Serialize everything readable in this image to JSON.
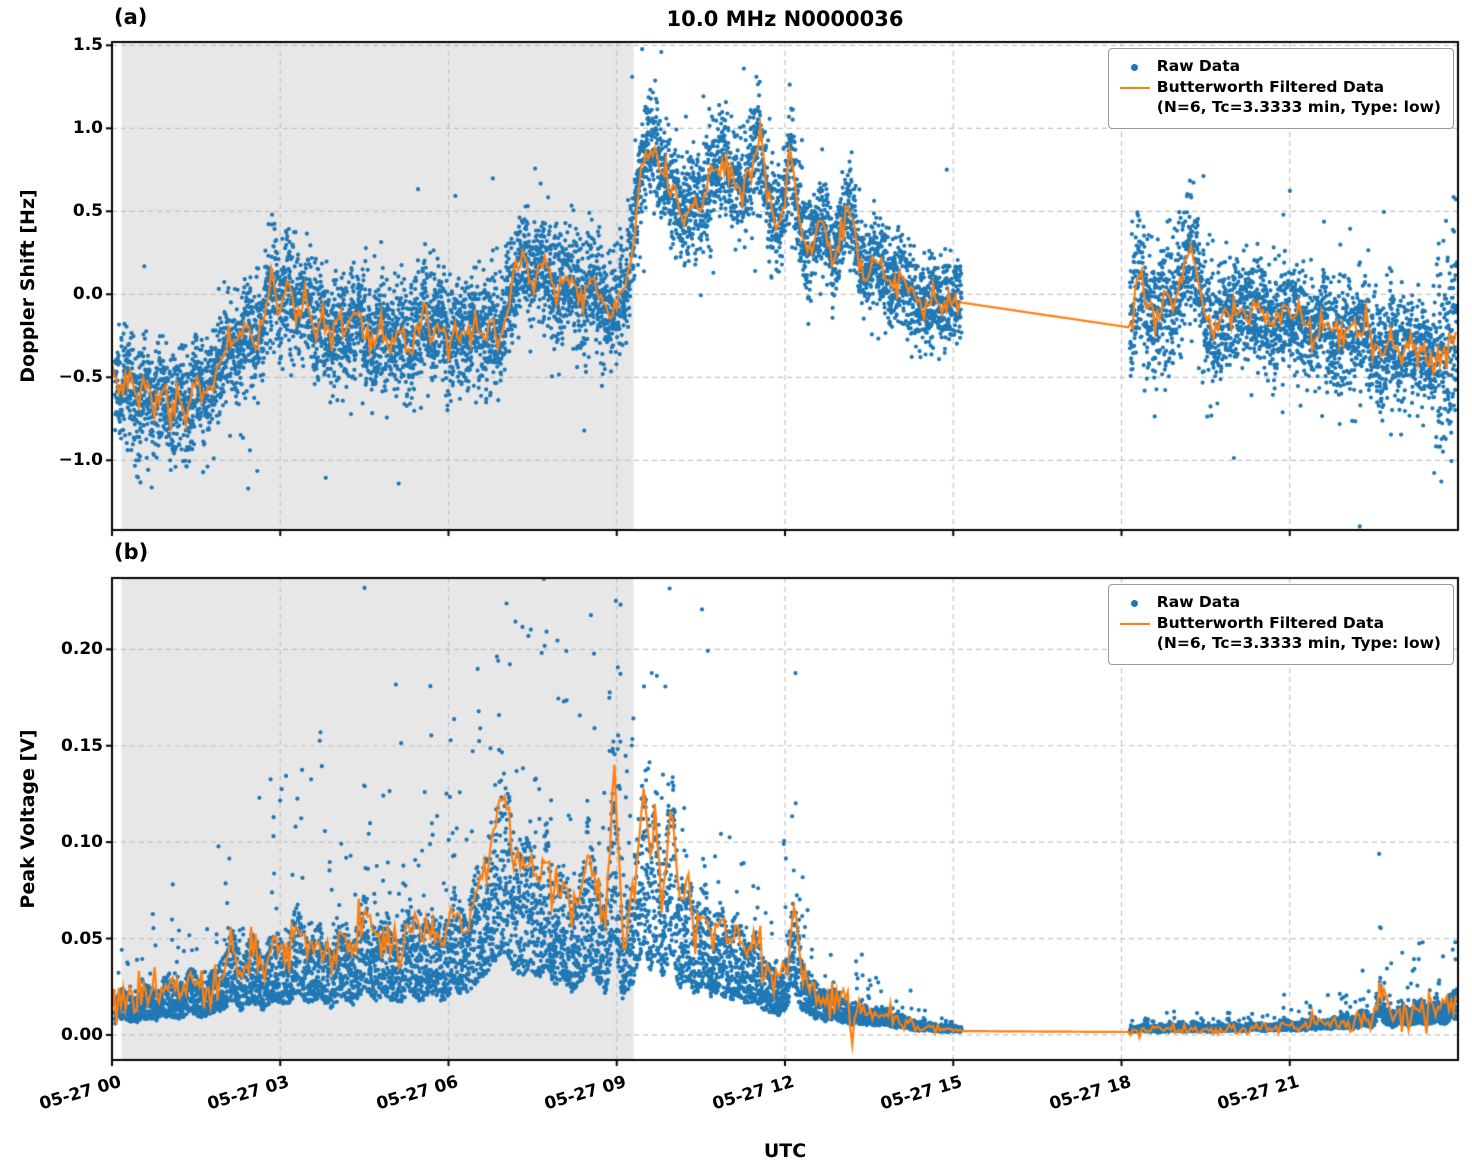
{
  "title": "10.0 MHz N0000036",
  "xlabel": "UTC",
  "legend": {
    "raw": "Raw Data",
    "filtered_line1": "Butterworth Filtered Data",
    "filtered_line2": "(N=6, Tc=3.3333 min, Type: low)"
  },
  "colors": {
    "raw": "#1f77b4",
    "filtered": "#ff7f0e",
    "shade": "#e7e7e7",
    "grid": "#c3c3c3",
    "frame": "#000000"
  },
  "xticks": [
    {
      "hour": 0,
      "label": "05-27 00"
    },
    {
      "hour": 3,
      "label": "05-27 03"
    },
    {
      "hour": 6,
      "label": "05-27 06"
    },
    {
      "hour": 9,
      "label": "05-27 09"
    },
    {
      "hour": 12,
      "label": "05-27 12"
    },
    {
      "hour": 15,
      "label": "05-27 15"
    },
    {
      "hour": 18,
      "label": "05-27 18"
    },
    {
      "hour": 21,
      "label": "05-27 21"
    }
  ],
  "chart_data": [
    {
      "type": "scatter",
      "panel_label": "(a)",
      "ylabel": "Doppler Shift [Hz]",
      "xlim_hours": [
        0,
        24
      ],
      "ylim": [
        -1.42,
        1.52
      ],
      "yticks": [
        {
          "value": 1.5,
          "label": "1.5"
        },
        {
          "value": 1.0,
          "label": "1.0"
        },
        {
          "value": 0.5,
          "label": "0.5"
        },
        {
          "value": 0.0,
          "label": "0.0"
        },
        {
          "value": -0.5,
          "label": "−0.5"
        },
        {
          "value": -1.0,
          "label": "−1.0"
        }
      ],
      "shaded_region_hours": [
        0.17,
        9.3
      ],
      "data_gap_hours": [
        15.15,
        18.15
      ],
      "line_wiggle": 0.045,
      "filtered_line_hour_value": [
        [
          0.0,
          -0.45
        ],
        [
          0.15,
          -0.6
        ],
        [
          0.3,
          -0.5
        ],
        [
          0.45,
          -0.68
        ],
        [
          0.6,
          -0.55
        ],
        [
          0.75,
          -0.72
        ],
        [
          0.9,
          -0.55
        ],
        [
          1.05,
          -0.75
        ],
        [
          1.2,
          -0.6
        ],
        [
          1.35,
          -0.7
        ],
        [
          1.5,
          -0.5
        ],
        [
          1.65,
          -0.62
        ],
        [
          1.8,
          -0.52
        ],
        [
          1.95,
          -0.4
        ],
        [
          2.1,
          -0.28
        ],
        [
          2.25,
          -0.35
        ],
        [
          2.4,
          -0.2
        ],
        [
          2.55,
          -0.3
        ],
        [
          2.7,
          -0.15
        ],
        [
          2.85,
          0.1
        ],
        [
          3.0,
          -0.05
        ],
        [
          3.15,
          0.05
        ],
        [
          3.3,
          -0.1
        ],
        [
          3.45,
          0.0
        ],
        [
          3.6,
          -0.2
        ],
        [
          3.75,
          -0.1
        ],
        [
          3.9,
          -0.3
        ],
        [
          4.05,
          -0.15
        ],
        [
          4.2,
          -0.25
        ],
        [
          4.35,
          -0.1
        ],
        [
          4.5,
          -0.2
        ],
        [
          4.65,
          -0.35
        ],
        [
          4.8,
          -0.2
        ],
        [
          4.95,
          -0.32
        ],
        [
          5.1,
          -0.2
        ],
        [
          5.25,
          -0.35
        ],
        [
          5.4,
          -0.25
        ],
        [
          5.55,
          -0.1
        ],
        [
          5.7,
          -0.25
        ],
        [
          5.85,
          -0.15
        ],
        [
          6.0,
          -0.3
        ],
        [
          6.15,
          -0.2
        ],
        [
          6.3,
          -0.27
        ],
        [
          6.45,
          -0.15
        ],
        [
          6.6,
          -0.25
        ],
        [
          6.75,
          -0.18
        ],
        [
          6.9,
          -0.3
        ],
        [
          7.05,
          -0.1
        ],
        [
          7.2,
          0.1
        ],
        [
          7.35,
          0.22
        ],
        [
          7.5,
          0.05
        ],
        [
          7.65,
          0.27
        ],
        [
          7.8,
          0.1
        ],
        [
          7.95,
          0.0
        ],
        [
          8.1,
          0.12
        ],
        [
          8.25,
          0.05
        ],
        [
          8.4,
          -0.05
        ],
        [
          8.55,
          0.1
        ],
        [
          8.7,
          -0.05
        ],
        [
          8.85,
          -0.15
        ],
        [
          9.0,
          -0.05
        ],
        [
          9.15,
          0.0
        ],
        [
          9.3,
          0.35
        ],
        [
          9.45,
          0.82
        ],
        [
          9.6,
          0.9
        ],
        [
          9.75,
          0.8
        ],
        [
          9.9,
          0.7
        ],
        [
          10.05,
          0.6
        ],
        [
          10.2,
          0.45
        ],
        [
          10.35,
          0.55
        ],
        [
          10.5,
          0.5
        ],
        [
          10.65,
          0.72
        ],
        [
          10.8,
          0.75
        ],
        [
          10.95,
          0.82
        ],
        [
          11.1,
          0.7
        ],
        [
          11.25,
          0.6
        ],
        [
          11.4,
          0.75
        ],
        [
          11.55,
          0.97
        ],
        [
          11.7,
          0.6
        ],
        [
          11.85,
          0.4
        ],
        [
          12.0,
          0.55
        ],
        [
          12.1,
          0.92
        ],
        [
          12.25,
          0.45
        ],
        [
          12.4,
          0.25
        ],
        [
          12.55,
          0.35
        ],
        [
          12.7,
          0.45
        ],
        [
          12.85,
          0.2
        ],
        [
          13.0,
          0.35
        ],
        [
          13.15,
          0.55
        ],
        [
          13.3,
          0.25
        ],
        [
          13.45,
          0.1
        ],
        [
          13.6,
          0.22
        ],
        [
          13.75,
          0.15
        ],
        [
          13.9,
          0.05
        ],
        [
          14.05,
          0.12
        ],
        [
          14.2,
          0.02
        ],
        [
          14.35,
          -0.05
        ],
        [
          14.5,
          -0.12
        ],
        [
          14.65,
          0.0
        ],
        [
          14.8,
          -0.08
        ],
        [
          14.95,
          -0.03
        ],
        [
          15.15,
          -0.05
        ],
        [
          18.15,
          -0.2
        ],
        [
          18.3,
          0.12
        ],
        [
          18.45,
          -0.05
        ],
        [
          18.6,
          -0.15
        ],
        [
          18.75,
          0.0
        ],
        [
          18.9,
          -0.12
        ],
        [
          19.05,
          0.05
        ],
        [
          19.2,
          0.3
        ],
        [
          19.35,
          0.1
        ],
        [
          19.5,
          -0.15
        ],
        [
          19.65,
          -0.25
        ],
        [
          19.8,
          -0.1
        ],
        [
          19.95,
          -0.18
        ],
        [
          20.1,
          -0.08
        ],
        [
          20.25,
          -0.15
        ],
        [
          20.4,
          -0.05
        ],
        [
          20.55,
          -0.12
        ],
        [
          20.7,
          -0.2
        ],
        [
          20.85,
          -0.1
        ],
        [
          21.0,
          -0.15
        ],
        [
          21.15,
          -0.08
        ],
        [
          21.3,
          -0.18
        ],
        [
          21.45,
          -0.25
        ],
        [
          21.6,
          -0.15
        ],
        [
          21.75,
          -0.22
        ],
        [
          21.9,
          -0.3
        ],
        [
          22.05,
          -0.2
        ],
        [
          22.2,
          -0.28
        ],
        [
          22.35,
          -0.18
        ],
        [
          22.5,
          -0.3
        ],
        [
          22.65,
          -0.38
        ],
        [
          22.8,
          -0.28
        ],
        [
          22.95,
          -0.35
        ],
        [
          23.1,
          -0.3
        ],
        [
          23.25,
          -0.38
        ],
        [
          23.4,
          -0.3
        ],
        [
          23.55,
          -0.42
        ],
        [
          23.7,
          -0.35
        ],
        [
          23.85,
          -0.3
        ],
        [
          23.98,
          -0.15
        ]
      ],
      "raw_noise": {
        "mode": "symmetric",
        "segments": [
          [
            0.05,
            15.15
          ],
          [
            18.15,
            23.98
          ]
        ],
        "step": 0.0022,
        "std_profile": [
          [
            0,
            2,
            0.16
          ],
          [
            2,
            9.3,
            0.17
          ],
          [
            9.3,
            12.5,
            0.16
          ],
          [
            12.5,
            15.15,
            0.13
          ],
          [
            18.15,
            19.8,
            0.2
          ],
          [
            19.8,
            23.6,
            0.16
          ],
          [
            23.6,
            24,
            0.3
          ]
        ],
        "outlier_prob": 0.015,
        "outlier_mult": 2.8
      }
    },
    {
      "type": "scatter",
      "panel_label": "(b)",
      "ylabel": "Peak Voltage [V]",
      "xlim_hours": [
        0,
        24
      ],
      "ylim": [
        -0.013,
        0.237
      ],
      "yticks": [
        {
          "value": 0.2,
          "label": "0.20"
        },
        {
          "value": 0.15,
          "label": "0.15"
        },
        {
          "value": 0.1,
          "label": "0.10"
        },
        {
          "value": 0.05,
          "label": "0.05"
        },
        {
          "value": 0.0,
          "label": "0.00"
        }
      ],
      "shaded_region_hours": [
        0.17,
        9.3
      ],
      "data_gap_hours": [
        15.15,
        18.15
      ],
      "line_wiggle": 0.0055,
      "filtered_line_hour_value": [
        [
          0.0,
          0.013
        ],
        [
          0.2,
          0.02
        ],
        [
          0.4,
          0.015
        ],
        [
          0.6,
          0.022
        ],
        [
          0.8,
          0.018
        ],
        [
          1.0,
          0.026
        ],
        [
          1.2,
          0.02
        ],
        [
          1.4,
          0.03
        ],
        [
          1.6,
          0.022
        ],
        [
          1.8,
          0.028
        ],
        [
          2.0,
          0.035
        ],
        [
          2.15,
          0.05
        ],
        [
          2.3,
          0.032
        ],
        [
          2.5,
          0.046
        ],
        [
          2.7,
          0.034
        ],
        [
          2.9,
          0.05
        ],
        [
          3.1,
          0.036
        ],
        [
          3.3,
          0.06
        ],
        [
          3.5,
          0.04
        ],
        [
          3.7,
          0.05
        ],
        [
          3.9,
          0.036
        ],
        [
          4.1,
          0.055
        ],
        [
          4.3,
          0.04
        ],
        [
          4.5,
          0.065
        ],
        [
          4.7,
          0.045
        ],
        [
          4.9,
          0.055
        ],
        [
          5.1,
          0.04
        ],
        [
          5.3,
          0.06
        ],
        [
          5.5,
          0.045
        ],
        [
          5.7,
          0.06
        ],
        [
          5.9,
          0.046
        ],
        [
          6.1,
          0.065
        ],
        [
          6.3,
          0.052
        ],
        [
          6.5,
          0.075
        ],
        [
          6.7,
          0.088
        ],
        [
          6.85,
          0.11
        ],
        [
          7.0,
          0.12
        ],
        [
          7.15,
          0.095
        ],
        [
          7.3,
          0.085
        ],
        [
          7.45,
          0.092
        ],
        [
          7.6,
          0.08
        ],
        [
          7.75,
          0.095
        ],
        [
          7.9,
          0.07
        ],
        [
          8.05,
          0.08
        ],
        [
          8.2,
          0.062
        ],
        [
          8.35,
          0.072
        ],
        [
          8.5,
          0.1
        ],
        [
          8.65,
          0.075
        ],
        [
          8.8,
          0.055
        ],
        [
          8.95,
          0.14
        ],
        [
          9.1,
          0.05
        ],
        [
          9.25,
          0.065
        ],
        [
          9.4,
          0.1
        ],
        [
          9.5,
          0.125
        ],
        [
          9.6,
          0.09
        ],
        [
          9.7,
          0.12
        ],
        [
          9.8,
          0.072
        ],
        [
          9.9,
          0.1
        ],
        [
          10.0,
          0.118
        ],
        [
          10.1,
          0.065
        ],
        [
          10.25,
          0.08
        ],
        [
          10.4,
          0.055
        ],
        [
          10.55,
          0.07
        ],
        [
          10.7,
          0.05
        ],
        [
          10.85,
          0.06
        ],
        [
          11.0,
          0.046
        ],
        [
          11.15,
          0.055
        ],
        [
          11.3,
          0.04
        ],
        [
          11.45,
          0.046
        ],
        [
          11.6,
          0.035
        ],
        [
          11.75,
          0.03
        ],
        [
          11.9,
          0.025
        ],
        [
          12.05,
          0.04
        ],
        [
          12.15,
          0.065
        ],
        [
          12.3,
          0.035
        ],
        [
          12.45,
          0.025
        ],
        [
          12.6,
          0.02
        ],
        [
          12.75,
          0.018
        ],
        [
          12.9,
          0.02
        ],
        [
          13.05,
          0.015
        ],
        [
          13.2,
          0.012
        ],
        [
          13.35,
          0.014
        ],
        [
          13.5,
          0.01
        ],
        [
          13.7,
          0.012
        ],
        [
          13.9,
          0.008
        ],
        [
          14.1,
          0.007
        ],
        [
          14.3,
          0.005
        ],
        [
          14.5,
          0.004
        ],
        [
          14.7,
          0.003
        ],
        [
          14.9,
          0.0025
        ],
        [
          15.15,
          0.002
        ],
        [
          18.15,
          0.0015
        ],
        [
          18.4,
          0.003
        ],
        [
          18.65,
          0.002
        ],
        [
          18.9,
          0.0035
        ],
        [
          19.15,
          0.0025
        ],
        [
          19.4,
          0.003
        ],
        [
          19.65,
          0.002
        ],
        [
          19.9,
          0.0035
        ],
        [
          20.15,
          0.003
        ],
        [
          20.4,
          0.004
        ],
        [
          20.65,
          0.003
        ],
        [
          20.9,
          0.005
        ],
        [
          21.15,
          0.004
        ],
        [
          21.4,
          0.006
        ],
        [
          21.65,
          0.005
        ],
        [
          21.9,
          0.008
        ],
        [
          22.1,
          0.006
        ],
        [
          22.3,
          0.01
        ],
        [
          22.5,
          0.008
        ],
        [
          22.6,
          0.028
        ],
        [
          22.7,
          0.012
        ],
        [
          22.85,
          0.009
        ],
        [
          23.0,
          0.013
        ],
        [
          23.15,
          0.01
        ],
        [
          23.3,
          0.015
        ],
        [
          23.45,
          0.012
        ],
        [
          23.6,
          0.016
        ],
        [
          23.75,
          0.013
        ],
        [
          23.9,
          0.018
        ],
        [
          23.98,
          0.02
        ]
      ],
      "raw_noise": {
        "mode": "voltage",
        "segments": [
          [
            0.05,
            15.15
          ],
          [
            18.15,
            23.98
          ]
        ],
        "step": 0.0022,
        "rel_low": 0.35,
        "rel_span": 0.8,
        "pow": 1.4,
        "tail_prob": 0.07,
        "tail_mult": 1.1,
        "baseline": 0.0025
      }
    }
  ]
}
